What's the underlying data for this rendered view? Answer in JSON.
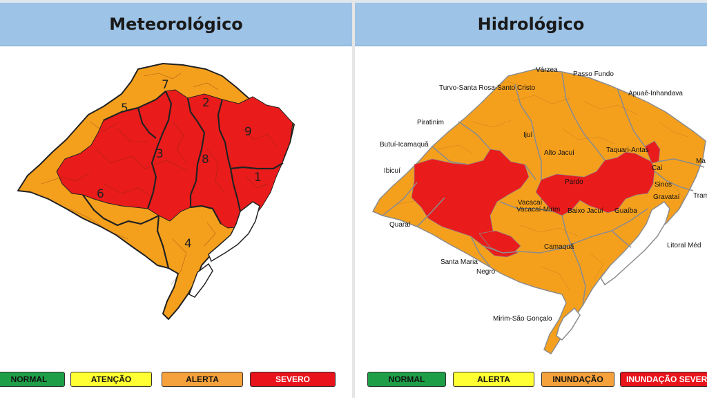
{
  "panels": {
    "left": {
      "title": "Meteorológico"
    },
    "right": {
      "title": "Hidrológico"
    }
  },
  "meteo_regions": [
    "1",
    "2",
    "3",
    "4",
    "5",
    "6",
    "7",
    "8",
    "9"
  ],
  "basin_labels": {
    "varzea": "Várzea",
    "passo_fundo": "Passo Fundo",
    "turvo": "Turvo-Santa Rosa-Santo Cristo",
    "apuae": "Apuaê-Inhandava",
    "piratinim": "Piratinim",
    "butui": "Butuí-Icamaquã",
    "ijui": "Ijuí",
    "alto_jacui": "Alto Jacuí",
    "taquari": "Taquari-Antas",
    "ibicui": "Ibicuí",
    "cai": "Caí",
    "ma": "Ma",
    "sinos": "Sinos",
    "pardo": "Pardo",
    "gravatai": "Gravataí",
    "tram": "Tram",
    "vacacai": "Vacacaí",
    "vacacai_mirim": "Vacacaí-Mirim",
    "baixo_jacui": "Baixo Jacuí",
    "guaiba": "Guaíba",
    "quarai": "Quaraí",
    "camaqua": "Camaquã",
    "litoral": "Litoral Méd",
    "santa_maria": "Santa Maria",
    "negro": "Negro",
    "mirim": "Mirim-São Gonçalo"
  },
  "legend_meteo": [
    {
      "label": "NORMAL",
      "color": "#1f9e48",
      "text": "#111111"
    },
    {
      "label": "ATENÇÃO",
      "color": "#ffff33",
      "text": "#111111"
    },
    {
      "label": "ALERTA",
      "color": "#f5a23c",
      "text": "#111111"
    },
    {
      "label": "SEVERO",
      "color": "#e8131b",
      "text": "#ffffff"
    }
  ],
  "legend_hidro": [
    {
      "label": "NORMAL",
      "color": "#1f9e48",
      "text": "#111111"
    },
    {
      "label": "ALERTA",
      "color": "#ffff33",
      "text": "#111111"
    },
    {
      "label": "INUNDAÇÃO",
      "color": "#f5a23c",
      "text": "#111111"
    },
    {
      "label": "INUNDAÇÃO SEVERA",
      "color": "#e8131b",
      "text": "#ffffff"
    }
  ],
  "colors": {
    "alert_orange": "#f5a01d",
    "severe_red": "#ea1b1b",
    "border": "#222222",
    "basin_line": "#8c8c8c",
    "header_blue": "#9dc3e6"
  }
}
